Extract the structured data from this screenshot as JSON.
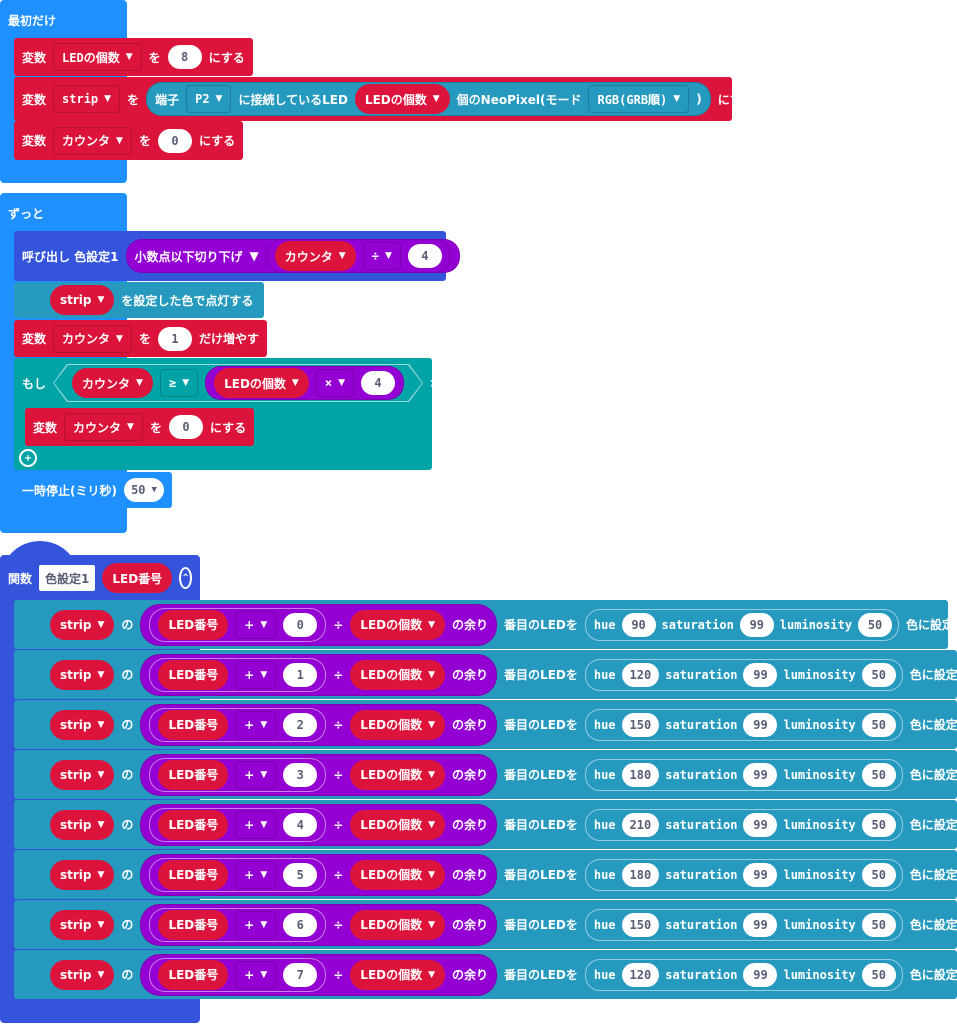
{
  "colors": {
    "event": "#1e90ff",
    "variable": "#dc143c",
    "neopixel": "#2699bf",
    "math": "#9400d3",
    "function": "#3455db",
    "logic": "#00a4a6"
  },
  "on_start": {
    "label": "最初だけ",
    "rows": [
      [
        {
          "k": "label",
          "v": "変数"
        },
        {
          "k": "dd",
          "v": "LEDの個数"
        },
        {
          "k": "label",
          "v": "を"
        },
        {
          "k": "num",
          "v": "8"
        },
        {
          "k": "label",
          "v": "にする"
        }
      ],
      [
        {
          "k": "label",
          "v": "変数"
        },
        {
          "k": "dd",
          "v": "strip"
        },
        {
          "k": "label",
          "v": "を"
        },
        {
          "k": "pill",
          "c": "neopixel",
          "items": [
            {
              "k": "label",
              "v": "端子"
            },
            {
              "k": "dd",
              "v": "P2"
            },
            {
              "k": "label",
              "v": "に接続しているLED"
            },
            {
              "k": "var",
              "v": "LEDの個数"
            },
            {
              "k": "label",
              "v": "個のNeoPixel(モード"
            },
            {
              "k": "dd",
              "v": "RGB(GRB順)"
            },
            {
              "k": "label",
              "v": ")"
            }
          ]
        },
        {
          "k": "label",
          "v": "にする"
        }
      ],
      [
        {
          "k": "label",
          "v": "変数"
        },
        {
          "k": "dd",
          "v": "カウンタ"
        },
        {
          "k": "label",
          "v": "を"
        },
        {
          "k": "num",
          "v": "0"
        },
        {
          "k": "label",
          "v": "にする"
        }
      ]
    ]
  },
  "forever": {
    "label": "ずっと",
    "call": [
      {
        "k": "label",
        "v": "呼び出し 色設定1"
      },
      {
        "k": "pill",
        "c": "math",
        "items": [
          {
            "k": "label",
            "v": "小数点以下切り下げ"
          },
          {
            "k": "arrow"
          },
          {
            "k": "pill",
            "c": "math",
            "items": [
              {
                "k": "var",
                "v": "カウンタ"
              },
              {
                "k": "dd",
                "v": "÷"
              },
              {
                "k": "num",
                "v": "4"
              }
            ]
          }
        ]
      }
    ],
    "show": [
      {
        "k": "var",
        "v": "strip"
      },
      {
        "k": "label",
        "v": "を設定した色で点灯する"
      }
    ],
    "change": [
      {
        "k": "label",
        "v": "変数"
      },
      {
        "k": "dd",
        "v": "カウンタ"
      },
      {
        "k": "label",
        "v": "を"
      },
      {
        "k": "num",
        "v": "1"
      },
      {
        "k": "label",
        "v": "だけ増やす"
      }
    ],
    "if": [
      {
        "k": "label",
        "v": "もし"
      },
      {
        "k": "hex",
        "items": [
          {
            "k": "var",
            "v": "カウンタ"
          },
          {
            "k": "dd",
            "v": "≥"
          },
          {
            "k": "pill",
            "c": "math",
            "items": [
              {
                "k": "var",
                "v": "LEDの個数"
              },
              {
                "k": "dd",
                "v": "×"
              },
              {
                "k": "num",
                "v": "4"
              }
            ]
          }
        ]
      },
      {
        "k": "label",
        "v": "なら"
      }
    ],
    "if_body": [
      {
        "k": "label",
        "v": "変数"
      },
      {
        "k": "dd",
        "v": "カウンタ"
      },
      {
        "k": "label",
        "v": "を"
      },
      {
        "k": "num",
        "v": "0"
      },
      {
        "k": "label",
        "v": "にする"
      }
    ],
    "pause": [
      {
        "k": "label",
        "v": "一時停止(ミリ秒)"
      },
      {
        "k": "numdd",
        "v": "50"
      }
    ]
  },
  "function": {
    "keyword": "関数",
    "name": "色設定1",
    "param": "LED番号",
    "rows": [
      {
        "var": "strip",
        "of": "の",
        "param": "LED番号",
        "op": "+",
        "offset": "0",
        "mod_op": "÷",
        "count": "LEDの個数",
        "rem": "の余り",
        "nth": "番目のLEDを",
        "hue_l": "hue",
        "hue": "90",
        "sat_l": "saturation",
        "sat": "99",
        "lum_l": "luminosity",
        "lum": "50",
        "tail": "色に設定する"
      },
      {
        "var": "strip",
        "of": "の",
        "param": "LED番号",
        "op": "+",
        "offset": "1",
        "mod_op": "÷",
        "count": "LEDの個数",
        "rem": "の余り",
        "nth": "番目のLEDを",
        "hue_l": "hue",
        "hue": "120",
        "sat_l": "saturation",
        "sat": "99",
        "lum_l": "luminosity",
        "lum": "50",
        "tail": "色に設定する"
      },
      {
        "var": "strip",
        "of": "の",
        "param": "LED番号",
        "op": "+",
        "offset": "2",
        "mod_op": "÷",
        "count": "LEDの個数",
        "rem": "の余り",
        "nth": "番目のLEDを",
        "hue_l": "hue",
        "hue": "150",
        "sat_l": "saturation",
        "sat": "99",
        "lum_l": "luminosity",
        "lum": "50",
        "tail": "色に設定する"
      },
      {
        "var": "strip",
        "of": "の",
        "param": "LED番号",
        "op": "+",
        "offset": "3",
        "mod_op": "÷",
        "count": "LEDの個数",
        "rem": "の余り",
        "nth": "番目のLEDを",
        "hue_l": "hue",
        "hue": "180",
        "sat_l": "saturation",
        "sat": "99",
        "lum_l": "luminosity",
        "lum": "50",
        "tail": "色に設定する"
      },
      {
        "var": "strip",
        "of": "の",
        "param": "LED番号",
        "op": "+",
        "offset": "4",
        "mod_op": "÷",
        "count": "LEDの個数",
        "rem": "の余り",
        "nth": "番目のLEDを",
        "hue_l": "hue",
        "hue": "210",
        "sat_l": "saturation",
        "sat": "99",
        "lum_l": "luminosity",
        "lum": "50",
        "tail": "色に設定する"
      },
      {
        "var": "strip",
        "of": "の",
        "param": "LED番号",
        "op": "+",
        "offset": "5",
        "mod_op": "÷",
        "count": "LEDの個数",
        "rem": "の余り",
        "nth": "番目のLEDを",
        "hue_l": "hue",
        "hue": "180",
        "sat_l": "saturation",
        "sat": "99",
        "lum_l": "luminosity",
        "lum": "50",
        "tail": "色に設定する"
      },
      {
        "var": "strip",
        "of": "の",
        "param": "LED番号",
        "op": "+",
        "offset": "6",
        "mod_op": "÷",
        "count": "LEDの個数",
        "rem": "の余り",
        "nth": "番目のLEDを",
        "hue_l": "hue",
        "hue": "150",
        "sat_l": "saturation",
        "sat": "99",
        "lum_l": "luminosity",
        "lum": "50",
        "tail": "色に設定する"
      },
      {
        "var": "strip",
        "of": "の",
        "param": "LED番号",
        "op": "+",
        "offset": "7",
        "mod_op": "÷",
        "count": "LEDの個数",
        "rem": "の余り",
        "nth": "番目のLEDを",
        "hue_l": "hue",
        "hue": "120",
        "sat_l": "saturation",
        "sat": "99",
        "lum_l": "luminosity",
        "lum": "50",
        "tail": "色に設定する"
      }
    ]
  }
}
